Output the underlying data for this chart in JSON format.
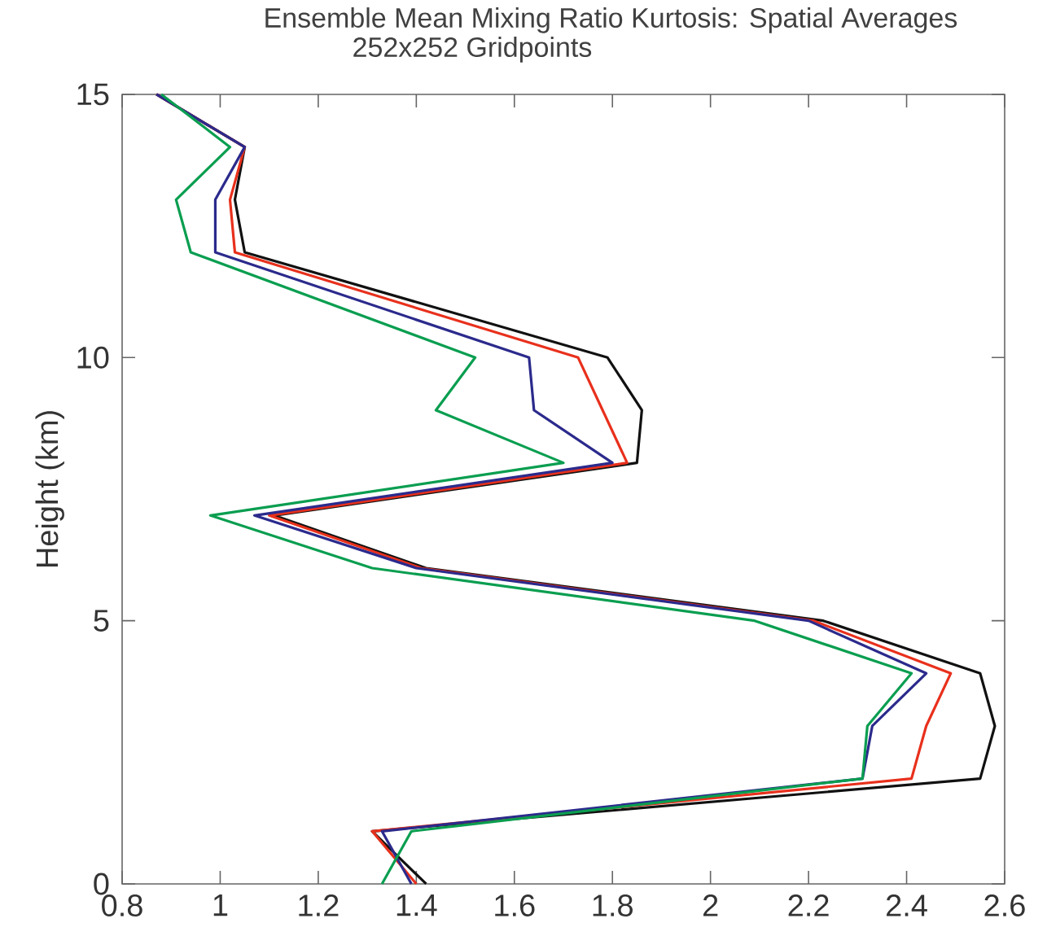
{
  "chart_data": {
    "type": "line",
    "title": "Ensemble Mean Mixing Ratio Kurtosis: Spatial Averages",
    "subtitle": "252x252 Gridpoints",
    "ylabel": "Height (km)",
    "xlim": [
      0.8,
      2.6
    ],
    "xticks": [
      0.8,
      1,
      1.2,
      1.4,
      1.6,
      1.8,
      2,
      2.2,
      2.4,
      2.6
    ],
    "ylim": [
      0,
      15
    ],
    "yticks": [
      0,
      5,
      10,
      15
    ],
    "grid": false,
    "marker": "none",
    "line_style": "solid",
    "series": [
      {
        "color": "#111111",
        "x": [
          1.42,
          1.31,
          2.55,
          2.58,
          2.55,
          2.23,
          1.42,
          1.11,
          1.85,
          1.86,
          1.79,
          1.05,
          1.03,
          1.05,
          0.87
        ],
        "values": [
          0,
          1,
          2,
          3,
          4,
          5,
          6,
          7,
          8,
          9,
          10,
          12,
          13,
          14,
          15
        ]
      },
      {
        "color": "#e8301c",
        "x": [
          1.4,
          1.31,
          2.41,
          2.44,
          2.49,
          2.21,
          1.41,
          1.1,
          1.83,
          1.78,
          1.73,
          1.03,
          1.02,
          1.05,
          0.87
        ],
        "values": [
          0,
          1,
          2,
          3,
          4,
          5,
          6,
          7,
          8,
          9,
          10,
          12,
          13,
          14,
          15
        ]
      },
      {
        "color": "#2b2a8c",
        "x": [
          1.39,
          1.33,
          2.31,
          2.33,
          2.44,
          2.2,
          1.4,
          1.07,
          1.8,
          1.64,
          1.63,
          0.99,
          0.99,
          1.05,
          0.87
        ],
        "values": [
          0,
          1,
          2,
          3,
          4,
          5,
          6,
          7,
          8,
          9,
          10,
          12,
          13,
          14,
          15
        ]
      },
      {
        "color": "#0a9e50",
        "x": [
          1.33,
          1.39,
          2.31,
          2.32,
          2.41,
          2.09,
          1.31,
          0.98,
          1.7,
          1.44,
          1.52,
          0.94,
          0.91,
          1.02,
          0.88
        ],
        "values": [
          0,
          1,
          2,
          3,
          4,
          5,
          6,
          7,
          8,
          9,
          10,
          12,
          13,
          14,
          15
        ]
      }
    ]
  }
}
